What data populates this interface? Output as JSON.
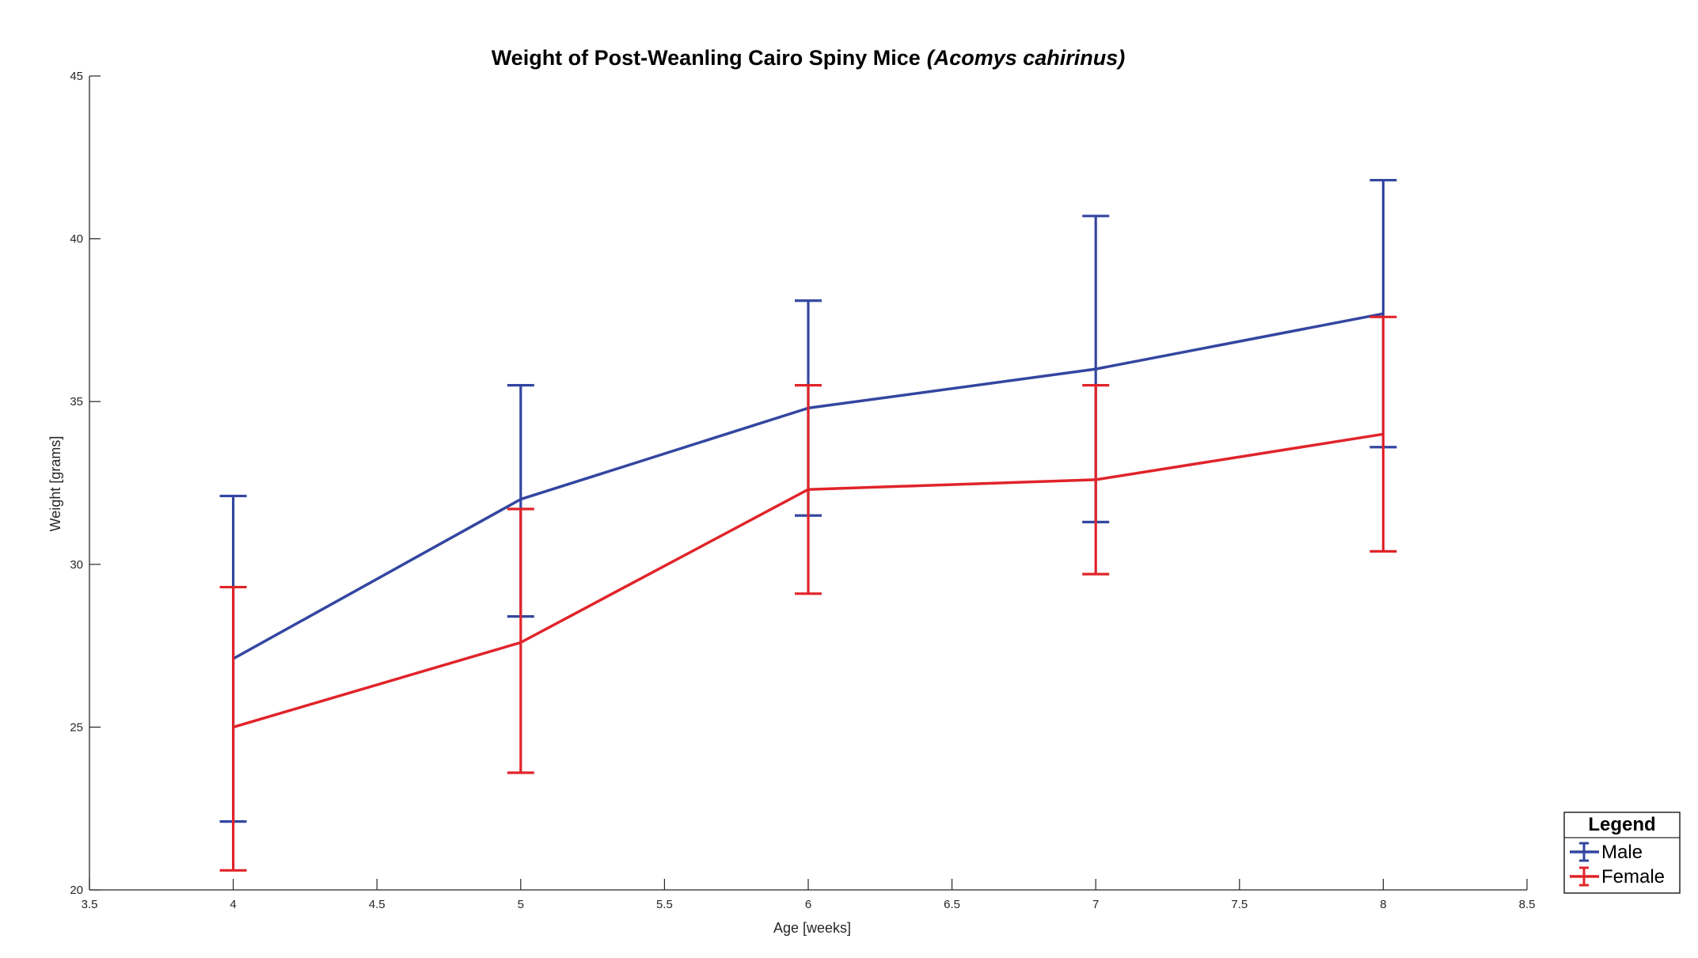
{
  "chart_data": {
    "type": "line",
    "title": "Weight of Post-Weanling Cairo Spiny Mice",
    "title_italic": "(Acomys cahirinus)",
    "xlabel": "Age [weeks]",
    "ylabel": "Weight [grams]",
    "xlim": [
      3.5,
      8.5
    ],
    "ylim": [
      20,
      45
    ],
    "xticks": [
      3.5,
      4,
      4.5,
      5,
      5.5,
      6,
      6.5,
      7,
      7.5,
      8,
      8.5
    ],
    "xtick_labels": [
      "3.5",
      "4",
      "4.5",
      "5",
      "5.5",
      "6",
      "6.5",
      "7",
      "7.5",
      "8",
      "8.5"
    ],
    "yticks": [
      20,
      25,
      30,
      35,
      40,
      45
    ],
    "ytick_labels": [
      "20",
      "25",
      "30",
      "35",
      "40",
      "45"
    ],
    "grid": false,
    "error_bars": true,
    "legend_title": "Legend",
    "legend_position": "bottom-right",
    "x": [
      4,
      5,
      6,
      7,
      8
    ],
    "series": [
      {
        "name": "Male",
        "color": "#3346A0",
        "values": [
          27.1,
          32.0,
          34.8,
          36.0,
          37.7
        ],
        "lower": [
          22.1,
          28.4,
          31.5,
          31.3,
          33.6
        ],
        "upper": [
          32.1,
          35.5,
          38.1,
          40.7,
          41.8
        ]
      },
      {
        "name": "Female",
        "color": "#E0242A",
        "values": [
          25.0,
          27.6,
          32.3,
          32.6,
          34.0
        ],
        "lower": [
          20.6,
          23.6,
          29.1,
          29.7,
          30.4
        ],
        "upper": [
          29.3,
          31.7,
          35.5,
          35.5,
          37.6
        ]
      }
    ]
  }
}
